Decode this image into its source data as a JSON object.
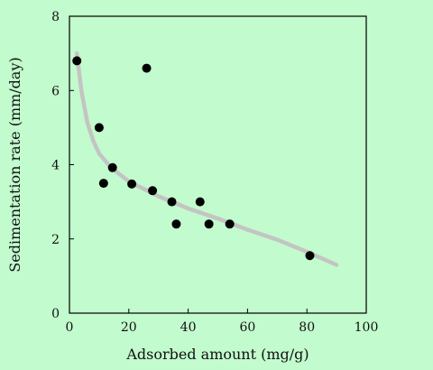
{
  "chart_data": {
    "type": "scatter",
    "title": "",
    "xlabel": "Adsorbed amount (mg/g)",
    "ylabel": "Sedimentation rate (mm/day)",
    "xlim": [
      0,
      100
    ],
    "ylim": [
      0,
      8
    ],
    "x_ticks": [
      0,
      20,
      40,
      60,
      80,
      100
    ],
    "y_ticks": [
      0,
      2,
      4,
      6,
      8
    ],
    "grid": false,
    "legend": "none",
    "series": [
      {
        "type": "scatter",
        "color": "#000000",
        "x": [
          2.5,
          10,
          11.5,
          14.5,
          21,
          26,
          28,
          34.5,
          36,
          44,
          47,
          54,
          81
        ],
        "y": [
          6.8,
          5.0,
          3.5,
          3.92,
          3.48,
          6.6,
          3.3,
          3.0,
          2.4,
          3.0,
          2.4,
          2.4,
          1.55
        ]
      },
      {
        "type": "line",
        "color": "#c4c4c4",
        "x": [
          2.5,
          4,
          6,
          8,
          10,
          14,
          20,
          30,
          40,
          50,
          60,
          70,
          80,
          90
        ],
        "y": [
          7.0,
          6.0,
          5.15,
          4.65,
          4.3,
          3.92,
          3.55,
          3.15,
          2.82,
          2.55,
          2.25,
          1.98,
          1.65,
          1.3
        ]
      }
    ]
  }
}
